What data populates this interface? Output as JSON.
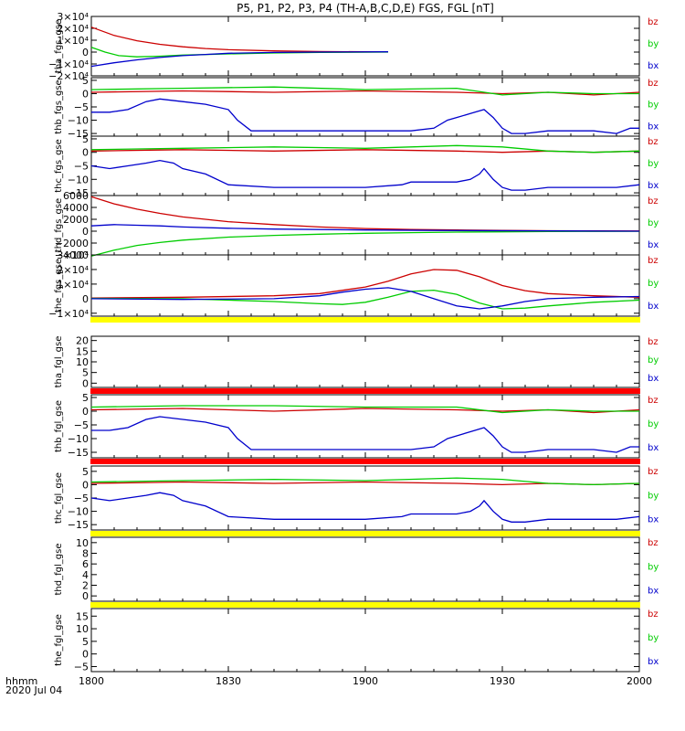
{
  "title": "P5, P1, P2, P3, P4 (TH-A,B,C,D,E) FGS, FGL [nT]",
  "x_axis": {
    "ticks": [
      "1800",
      "1830",
      "1900",
      "1930",
      "2000"
    ],
    "label_line1": "hhmm",
    "label_line2": "2020 Jul 04"
  },
  "legend": {
    "bz": "bz",
    "by": "by",
    "bx": "bx",
    "colors": {
      "bz": "#cc0000",
      "by": "#00cc00",
      "bx": "#0000cc"
    }
  },
  "bar_colors": {
    "yellow": "#ffff00",
    "red": "#ff0000"
  },
  "chart_data": [
    {
      "type": "line",
      "ylabel": "tha_fgs_gse",
      "ylim": [
        -20000,
        30000
      ],
      "yticks": [
        {
          "v": 30000,
          "label": "3×10⁴"
        },
        {
          "v": 20000,
          "label": "2×10⁴"
        },
        {
          "v": 10000,
          "label": "1×10⁴"
        },
        {
          "v": 0,
          "label": "0"
        },
        {
          "v": -10000,
          "label": "−1×10⁴"
        },
        {
          "v": -20000,
          "label": "−2×10⁴"
        }
      ],
      "x_minutes_end": 65,
      "series": [
        {
          "key": "bz",
          "x": [
            0,
            5,
            10,
            15,
            20,
            25,
            30,
            40,
            50,
            60,
            65
          ],
          "values": [
            21000,
            14000,
            9500,
            6500,
            4500,
            3000,
            2000,
            1000,
            500,
            200,
            100
          ]
        },
        {
          "key": "by",
          "x": [
            0,
            3,
            6,
            10,
            15,
            20,
            30,
            40,
            50,
            65
          ],
          "values": [
            4000,
            0,
            -3000,
            -4000,
            -3500,
            -2500,
            -1500,
            -800,
            -300,
            0
          ]
        },
        {
          "key": "bx",
          "x": [
            0,
            5,
            10,
            15,
            20,
            25,
            30,
            40,
            50,
            65
          ],
          "values": [
            -12000,
            -9000,
            -6500,
            -4500,
            -3000,
            -2000,
            -1000,
            -300,
            0,
            200
          ]
        }
      ]
    },
    {
      "type": "line",
      "ylabel": "thb_fgs_gse",
      "ylim": [
        -16,
        6
      ],
      "yticks": [
        {
          "v": 5,
          "label": "5"
        },
        {
          "v": 0,
          "label": "0"
        },
        {
          "v": -5,
          "label": "−5"
        },
        {
          "v": -10,
          "label": "−10"
        },
        {
          "v": -15,
          "label": "−15"
        }
      ],
      "series": [
        {
          "key": "bz",
          "x": [
            0,
            20,
            40,
            60,
            80,
            90,
            100,
            110,
            120
          ],
          "values": [
            0.5,
            1,
            0.5,
            1,
            0.5,
            0,
            0.5,
            -0.5,
            0.5
          ]
        },
        {
          "key": "by",
          "x": [
            0,
            20,
            40,
            60,
            80,
            90,
            100,
            110,
            120
          ],
          "values": [
            1.5,
            2,
            2.5,
            1.5,
            2,
            -0.5,
            0.5,
            0,
            0
          ]
        },
        {
          "key": "bx",
          "x": [
            0,
            4,
            8,
            12,
            15,
            20,
            25,
            30,
            32,
            35,
            40,
            50,
            60,
            70,
            75,
            78,
            80,
            84,
            86,
            88,
            90,
            92,
            95,
            100,
            110,
            115,
            118,
            120
          ],
          "values": [
            -7,
            -7,
            -6,
            -3,
            -2,
            -3,
            -4,
            -6,
            -10,
            -14,
            -14,
            -14,
            -14,
            -14,
            -13,
            -10,
            -9,
            -7,
            -6,
            -9,
            -13,
            -15,
            -15,
            -14,
            -14,
            -15,
            -13,
            -13
          ]
        }
      ]
    },
    {
      "type": "line",
      "ylabel": "thc_fgs_gse",
      "ylim": [
        -16,
        6
      ],
      "yticks": [
        {
          "v": 5,
          "label": "5"
        },
        {
          "v": 0,
          "label": "0"
        },
        {
          "v": -5,
          "label": "−5"
        },
        {
          "v": -10,
          "label": "−10"
        },
        {
          "v": -15,
          "label": "−15"
        }
      ],
      "series": [
        {
          "key": "bz",
          "x": [
            0,
            20,
            40,
            60,
            80,
            90,
            100,
            110,
            120
          ],
          "values": [
            0.5,
            1,
            0.5,
            1,
            0.5,
            0,
            0.5,
            0,
            0.5
          ]
        },
        {
          "key": "by",
          "x": [
            0,
            20,
            40,
            60,
            80,
            90,
            100,
            110,
            120
          ],
          "values": [
            1,
            1.5,
            2,
            1.5,
            2.5,
            2,
            0.5,
            0,
            0.5
          ]
        },
        {
          "key": "bx",
          "x": [
            0,
            4,
            8,
            12,
            15,
            18,
            20,
            25,
            30,
            40,
            50,
            60,
            68,
            70,
            80,
            83,
            85,
            86,
            88,
            90,
            92,
            95,
            100,
            110,
            115,
            120
          ],
          "values": [
            -5,
            -6,
            -5,
            -4,
            -3,
            -4,
            -6,
            -8,
            -12,
            -13,
            -13,
            -13,
            -12,
            -11,
            -11,
            -10,
            -8,
            -6,
            -10,
            -13,
            -14,
            -14,
            -13,
            -13,
            -13,
            -12
          ]
        }
      ]
    },
    {
      "type": "line",
      "ylabel": "thd_fgs_gse",
      "ylim": [
        -4000,
        6000
      ],
      "yticks": [
        {
          "v": 6000,
          "label": "6000"
        },
        {
          "v": 4000,
          "label": "4000"
        },
        {
          "v": 2000,
          "label": "2000"
        },
        {
          "v": 0,
          "label": "0"
        },
        {
          "v": -2000,
          "label": "−2000"
        },
        {
          "v": -4000,
          "label": "−4000"
        }
      ],
      "series": [
        {
          "key": "bz",
          "x": [
            0,
            5,
            10,
            15,
            20,
            30,
            40,
            50,
            60,
            70,
            80,
            90,
            100,
            110,
            120
          ],
          "values": [
            5800,
            4600,
            3700,
            3000,
            2400,
            1600,
            1100,
            700,
            450,
            300,
            200,
            120,
            80,
            50,
            30
          ]
        },
        {
          "key": "by",
          "x": [
            0,
            5,
            10,
            15,
            20,
            30,
            40,
            50,
            60,
            70,
            80,
            90,
            100,
            110,
            120
          ],
          "values": [
            -4200,
            -3200,
            -2400,
            -1900,
            -1500,
            -1000,
            -700,
            -500,
            -350,
            -250,
            -150,
            -100,
            -60,
            -30,
            -20
          ]
        },
        {
          "key": "bx",
          "x": [
            0,
            5,
            10,
            15,
            20,
            30,
            40,
            60,
            80,
            100,
            120
          ],
          "values": [
            900,
            1100,
            1000,
            900,
            700,
            500,
            350,
            200,
            100,
            50,
            0
          ]
        }
      ]
    },
    {
      "type": "line",
      "ylabel": "the_fgs_gse",
      "ylim": [
        -12000,
        30000
      ],
      "yticks": [
        {
          "v": 30000,
          "label": "3×10⁴"
        },
        {
          "v": 20000,
          "label": "2×10⁴"
        },
        {
          "v": 10000,
          "label": "1×10⁴"
        },
        {
          "v": 0,
          "label": "0"
        },
        {
          "v": -10000,
          "label": "−1×10⁴"
        }
      ],
      "series": [
        {
          "key": "bz",
          "x": [
            0,
            20,
            40,
            50,
            60,
            65,
            70,
            75,
            80,
            85,
            90,
            95,
            100,
            110,
            120
          ],
          "values": [
            500,
            1000,
            2000,
            3500,
            8000,
            12000,
            17000,
            20000,
            19500,
            15000,
            9000,
            5500,
            3500,
            2000,
            1000
          ]
        },
        {
          "key": "by",
          "x": [
            0,
            20,
            40,
            50,
            55,
            60,
            65,
            70,
            75,
            80,
            85,
            90,
            95,
            100,
            110,
            120
          ],
          "values": [
            200,
            0,
            -2000,
            -3500,
            -4000,
            -2500,
            1000,
            5000,
            5800,
            3000,
            -3000,
            -7000,
            -6500,
            -5000,
            -2500,
            -1000
          ]
        },
        {
          "key": "bx",
          "x": [
            0,
            20,
            40,
            50,
            55,
            60,
            65,
            70,
            75,
            80,
            85,
            90,
            95,
            100,
            110,
            120
          ],
          "values": [
            0,
            -500,
            0,
            2000,
            4500,
            6500,
            7500,
            5000,
            0,
            -5000,
            -7000,
            -5000,
            -2000,
            0,
            1000,
            1500
          ]
        }
      ]
    },
    {
      "type": "line",
      "ylabel": "tha_fgl_gse",
      "ylim": [
        -2,
        22
      ],
      "yticks": [
        {
          "v": 20,
          "label": "20"
        },
        {
          "v": 15,
          "label": "15"
        },
        {
          "v": 10,
          "label": "10"
        },
        {
          "v": 5,
          "label": "5"
        },
        {
          "v": 0,
          "label": "0"
        }
      ],
      "series": []
    },
    {
      "type": "line",
      "ylabel": "thb_fgl_gse",
      "ylim": [
        -17,
        6
      ],
      "yticks": [
        {
          "v": 5,
          "label": "5"
        },
        {
          "v": 0,
          "label": "0"
        },
        {
          "v": -5,
          "label": "−5"
        },
        {
          "v": -10,
          "label": "−10"
        },
        {
          "v": -15,
          "label": "−15"
        }
      ],
      "series": [
        {
          "key": "bz",
          "x": [
            0,
            20,
            40,
            60,
            80,
            90,
            100,
            110,
            120
          ],
          "values": [
            0.5,
            1,
            0,
            1,
            0.5,
            0,
            0.5,
            -0.5,
            0.5
          ]
        },
        {
          "key": "by",
          "x": [
            0,
            20,
            40,
            60,
            80,
            90,
            100,
            110,
            120
          ],
          "values": [
            1.5,
            2,
            2,
            1.5,
            1.5,
            -0.5,
            0.5,
            0,
            0
          ]
        },
        {
          "key": "bx",
          "x": [
            0,
            4,
            8,
            12,
            15,
            20,
            25,
            30,
            32,
            35,
            40,
            50,
            60,
            70,
            75,
            78,
            80,
            84,
            86,
            88,
            90,
            92,
            95,
            100,
            110,
            115,
            118,
            120
          ],
          "values": [
            -7,
            -7,
            -6,
            -3,
            -2,
            -3,
            -4,
            -6,
            -10,
            -14,
            -14,
            -14,
            -14,
            -14,
            -13,
            -10,
            -9,
            -7,
            -6,
            -9,
            -13,
            -15,
            -15,
            -14,
            -14,
            -15,
            -13,
            -13
          ]
        }
      ]
    },
    {
      "type": "line",
      "ylabel": "thc_fgl_gse",
      "ylim": [
        -17,
        7
      ],
      "yticks": [
        {
          "v": 5,
          "label": "5"
        },
        {
          "v": 0,
          "label": "0"
        },
        {
          "v": -5,
          "label": "−5"
        },
        {
          "v": -10,
          "label": "−10"
        },
        {
          "v": -15,
          "label": "−15"
        }
      ],
      "series": [
        {
          "key": "bz",
          "x": [
            0,
            20,
            40,
            60,
            80,
            90,
            100,
            110,
            120
          ],
          "values": [
            0.5,
            1,
            0.5,
            1,
            0.5,
            0,
            0.5,
            0,
            0.5
          ]
        },
        {
          "key": "by",
          "x": [
            0,
            20,
            40,
            60,
            80,
            90,
            100,
            110,
            120
          ],
          "values": [
            1,
            1.5,
            2,
            1.5,
            2.5,
            2,
            0.5,
            0,
            0.5
          ]
        },
        {
          "key": "bx",
          "x": [
            0,
            4,
            8,
            12,
            15,
            18,
            20,
            25,
            30,
            40,
            50,
            60,
            68,
            70,
            80,
            83,
            85,
            86,
            88,
            90,
            92,
            95,
            100,
            110,
            115,
            120
          ],
          "values": [
            -5,
            -6,
            -5,
            -4,
            -3,
            -4,
            -6,
            -8,
            -12,
            -13,
            -13,
            -13,
            -12,
            -11,
            -11,
            -10,
            -8,
            -6,
            -10,
            -13,
            -14,
            -14,
            -13,
            -13,
            -13,
            -12
          ]
        }
      ]
    },
    {
      "type": "line",
      "ylabel": "thd_fgl_gse",
      "ylim": [
        -1,
        11
      ],
      "yticks": [
        {
          "v": 10,
          "label": "10"
        },
        {
          "v": 8,
          "label": "8"
        },
        {
          "v": 6,
          "label": "6"
        },
        {
          "v": 4,
          "label": "4"
        },
        {
          "v": 2,
          "label": "2"
        },
        {
          "v": 0,
          "label": "0"
        }
      ],
      "series": []
    },
    {
      "type": "line",
      "ylabel": "the_fgl_gse",
      "ylim": [
        -7,
        18
      ],
      "yticks": [
        {
          "v": 15,
          "label": "15"
        },
        {
          "v": 10,
          "label": "10"
        },
        {
          "v": 5,
          "label": "5"
        },
        {
          "v": 0,
          "label": "0"
        },
        {
          "v": -5,
          "label": "−5"
        }
      ],
      "series": []
    }
  ]
}
